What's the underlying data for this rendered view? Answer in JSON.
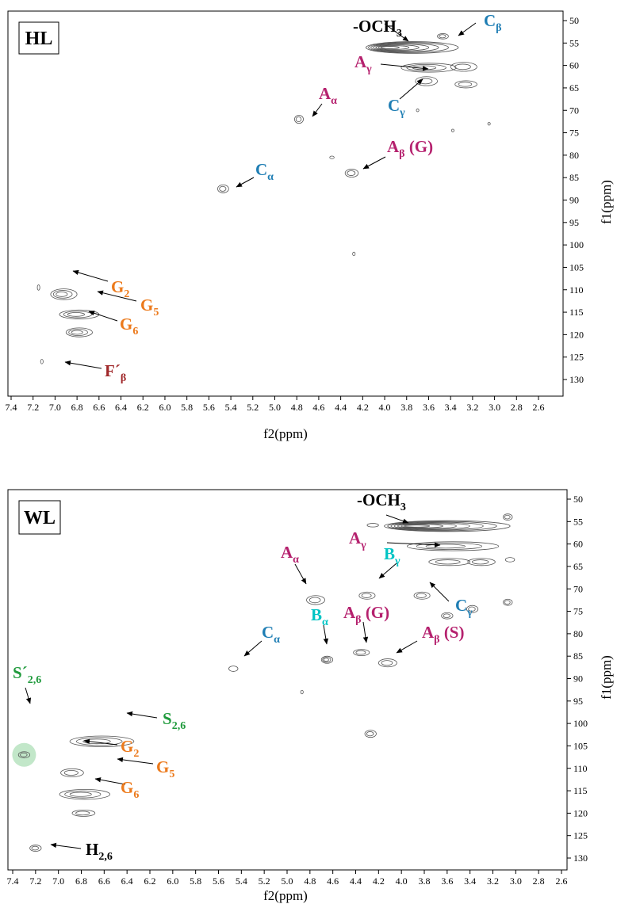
{
  "colors": {
    "contour": "#555555",
    "label_magenta": "#b5216e",
    "label_blue": "#1f7eb4",
    "label_cyan": "#00c4c4",
    "label_orange": "#ec7a1c",
    "label_green": "#1f9a3c",
    "label_darkred": "#a0282a",
    "label_black": "#000000",
    "highlight": "#b7e3bf"
  },
  "chart_data": [
    {
      "type": "scatter",
      "panel": "HL",
      "xlabel": "f2(ppm)",
      "ylabel": "f1(ppm)",
      "xlim": [
        7.4,
        2.5
      ],
      "ylim": [
        48,
        132
      ],
      "x_ticks": [
        "7.4",
        "7.2",
        "7.0",
        "6.8",
        "6.6",
        "6.4",
        "6.2",
        "6.0",
        "5.8",
        "5.6",
        "5.4",
        "5.2",
        "5.0",
        "4.8",
        "4.6",
        "4.4",
        "4.2",
        "4.0",
        "3.8",
        "3.6",
        "3.4",
        "3.2",
        "3.0",
        "2.8",
        "2.6"
      ],
      "y_ticks": [
        "50",
        "55",
        "60",
        "65",
        "70",
        "75",
        "80",
        "85",
        "90",
        "95",
        "100",
        "105",
        "110",
        "115",
        "120",
        "125",
        "130"
      ],
      "grid": false,
      "cross_peaks": [
        {
          "x": 3.75,
          "y": 56.0,
          "rx": 0.42,
          "ry": 1.3,
          "rings": 7
        },
        {
          "x": 3.47,
          "y": 53.5,
          "rx": 0.05,
          "ry": 0.6,
          "rings": 2
        },
        {
          "x": 3.6,
          "y": 60.5,
          "rx": 0.25,
          "ry": 1.0,
          "rings": 3
        },
        {
          "x": 3.28,
          "y": 60.3,
          "rx": 0.12,
          "ry": 1.0,
          "rings": 2
        },
        {
          "x": 3.62,
          "y": 63.5,
          "rx": 0.1,
          "ry": 1.0,
          "rings": 2
        },
        {
          "x": 3.26,
          "y": 64.2,
          "rx": 0.1,
          "ry": 0.8,
          "rings": 2
        },
        {
          "x": 4.78,
          "y": 72.0,
          "rx": 0.04,
          "ry": 0.9,
          "rings": 2
        },
        {
          "x": 3.7,
          "y": 70.0,
          "rx": 0.01,
          "ry": 0.3,
          "rings": 1
        },
        {
          "x": 3.38,
          "y": 74.5,
          "rx": 0.01,
          "ry": 0.3,
          "rings": 1
        },
        {
          "x": 3.05,
          "y": 73.0,
          "rx": 0.01,
          "ry": 0.3,
          "rings": 1
        },
        {
          "x": 4.48,
          "y": 80.5,
          "rx": 0.02,
          "ry": 0.3,
          "rings": 1
        },
        {
          "x": 4.3,
          "y": 84.0,
          "rx": 0.06,
          "ry": 0.9,
          "rings": 2
        },
        {
          "x": 5.47,
          "y": 87.5,
          "rx": 0.05,
          "ry": 0.9,
          "rings": 2
        },
        {
          "x": 4.28,
          "y": 102.0,
          "rx": 0.01,
          "ry": 0.4,
          "rings": 1
        },
        {
          "x": 7.15,
          "y": 109.5,
          "rx": 0.01,
          "ry": 0.6,
          "rings": 1
        },
        {
          "x": 6.92,
          "y": 111.0,
          "rx": 0.12,
          "ry": 1.2,
          "rings": 3
        },
        {
          "x": 6.78,
          "y": 115.5,
          "rx": 0.18,
          "ry": 1.0,
          "rings": 3
        },
        {
          "x": 6.78,
          "y": 119.5,
          "rx": 0.12,
          "ry": 1.0,
          "rings": 3
        },
        {
          "x": 7.12,
          "y": 126.0,
          "rx": 0.01,
          "ry": 0.5,
          "rings": 1
        }
      ],
      "annotations": [
        {
          "text": "-OCH",
          "sub": "3",
          "color": "label_black"
        },
        {
          "text": "C",
          "sub": "β",
          "color": "label_blue"
        },
        {
          "text": "A",
          "sub": "γ",
          "color": "label_magenta"
        },
        {
          "text": "A",
          "sub": "α",
          "color": "label_magenta"
        },
        {
          "text": "C",
          "sub": "γ",
          "color": "label_blue"
        },
        {
          "text": "A",
          "sub": "β",
          "suffix": " (G)",
          "color": "label_magenta"
        },
        {
          "text": "C",
          "sub": "α",
          "color": "label_blue"
        },
        {
          "text": "G",
          "sub": "2",
          "color": "label_orange"
        },
        {
          "text": "G",
          "sub": "5",
          "color": "label_orange"
        },
        {
          "text": "G",
          "sub": "6",
          "color": "label_orange"
        },
        {
          "text": "F´",
          "sub": "β",
          "color": "label_darkred"
        }
      ]
    },
    {
      "type": "scatter",
      "panel": "WL",
      "xlabel": "f2(ppm)",
      "ylabel": "f1(ppm)",
      "xlim": [
        7.4,
        2.55
      ],
      "ylim": [
        48,
        132
      ],
      "x_ticks": [
        "7.4",
        "7.2",
        "7.0",
        "6.8",
        "6.6",
        "6.4",
        "6.2",
        "6.0",
        "5.8",
        "5.6",
        "5.4",
        "5.2",
        "5.0",
        "4.8",
        "4.6",
        "4.4",
        "4.2",
        "4.0",
        "3.8",
        "3.6",
        "3.4",
        "3.2",
        "3.0",
        "2.8",
        "2.6"
      ],
      "y_ticks": [
        "50",
        "55",
        "60",
        "65",
        "70",
        "75",
        "80",
        "85",
        "90",
        "95",
        "100",
        "105",
        "110",
        "115",
        "120",
        "125",
        "130"
      ],
      "grid": false,
      "cross_peaks": [
        {
          "x": 3.6,
          "y": 56.0,
          "rx": 0.55,
          "ry": 1.2,
          "rings": 7
        },
        {
          "x": 3.07,
          "y": 54.0,
          "rx": 0.04,
          "ry": 0.7,
          "rings": 2
        },
        {
          "x": 4.25,
          "y": 55.8,
          "rx": 0.05,
          "ry": 0.4,
          "rings": 1
        },
        {
          "x": 3.55,
          "y": 60.5,
          "rx": 0.4,
          "ry": 1.0,
          "rings": 3
        },
        {
          "x": 3.58,
          "y": 64.0,
          "rx": 0.18,
          "ry": 0.8,
          "rings": 2
        },
        {
          "x": 3.3,
          "y": 64.0,
          "rx": 0.12,
          "ry": 0.8,
          "rings": 2
        },
        {
          "x": 3.05,
          "y": 63.5,
          "rx": 0.04,
          "ry": 0.5,
          "rings": 1
        },
        {
          "x": 4.75,
          "y": 72.5,
          "rx": 0.08,
          "ry": 1.0,
          "rings": 2
        },
        {
          "x": 4.3,
          "y": 71.5,
          "rx": 0.07,
          "ry": 0.8,
          "rings": 2
        },
        {
          "x": 3.82,
          "y": 71.5,
          "rx": 0.07,
          "ry": 0.8,
          "rings": 2
        },
        {
          "x": 3.6,
          "y": 76.0,
          "rx": 0.05,
          "ry": 0.7,
          "rings": 2
        },
        {
          "x": 3.38,
          "y": 74.5,
          "rx": 0.05,
          "ry": 0.8,
          "rings": 2
        },
        {
          "x": 3.07,
          "y": 73.0,
          "rx": 0.04,
          "ry": 0.7,
          "rings": 2
        },
        {
          "x": 4.65,
          "y": 85.8,
          "rx": 0.05,
          "ry": 0.8,
          "rings": 3
        },
        {
          "x": 4.35,
          "y": 84.2,
          "rx": 0.07,
          "ry": 0.7,
          "rings": 2
        },
        {
          "x": 4.12,
          "y": 86.5,
          "rx": 0.08,
          "ry": 0.9,
          "rings": 2
        },
        {
          "x": 5.47,
          "y": 87.8,
          "rx": 0.04,
          "ry": 0.6,
          "rings": 1
        },
        {
          "x": 4.87,
          "y": 93.0,
          "rx": 0.01,
          "ry": 0.4,
          "rings": 1
        },
        {
          "x": 4.27,
          "y": 102.3,
          "rx": 0.05,
          "ry": 0.8,
          "rings": 2
        },
        {
          "x": 6.62,
          "y": 104.0,
          "rx": 0.28,
          "ry": 1.2,
          "rings": 3
        },
        {
          "x": 7.3,
          "y": 107.0,
          "rx": 0.05,
          "ry": 0.7,
          "rings": 2
        },
        {
          "x": 6.88,
          "y": 111.0,
          "rx": 0.1,
          "ry": 0.9,
          "rings": 2
        },
        {
          "x": 6.77,
          "y": 115.8,
          "rx": 0.22,
          "ry": 1.1,
          "rings": 3
        },
        {
          "x": 6.78,
          "y": 120.0,
          "rx": 0.1,
          "ry": 0.7,
          "rings": 2
        },
        {
          "x": 7.2,
          "y": 127.8,
          "rx": 0.05,
          "ry": 0.7,
          "rings": 2
        }
      ],
      "annotations": [
        {
          "text": "-OCH",
          "sub": "3",
          "color": "label_black"
        },
        {
          "text": "A",
          "sub": "γ",
          "color": "label_magenta"
        },
        {
          "text": "A",
          "sub": "α",
          "color": "label_magenta"
        },
        {
          "text": "B",
          "sub": "γ",
          "color": "label_cyan"
        },
        {
          "text": "C",
          "sub": "γ",
          "color": "label_blue"
        },
        {
          "text": "A",
          "sub": "β",
          "suffix": " (G)",
          "color": "label_magenta"
        },
        {
          "text": "B",
          "sub": "α",
          "color": "label_cyan"
        },
        {
          "text": "C",
          "sub": "α",
          "color": "label_blue"
        },
        {
          "text": "A",
          "sub": "β",
          "suffix": " (S)",
          "color": "label_magenta"
        },
        {
          "text": "S´",
          "sub": "2,6",
          "color": "label_green"
        },
        {
          "text": "S",
          "sub": "2,6",
          "color": "label_green"
        },
        {
          "text": "G",
          "sub": "2",
          "color": "label_orange"
        },
        {
          "text": "G",
          "sub": "5",
          "color": "label_orange"
        },
        {
          "text": "G",
          "sub": "6",
          "color": "label_orange"
        },
        {
          "text": "H",
          "sub": "2,6",
          "color": "label_black"
        }
      ]
    }
  ]
}
